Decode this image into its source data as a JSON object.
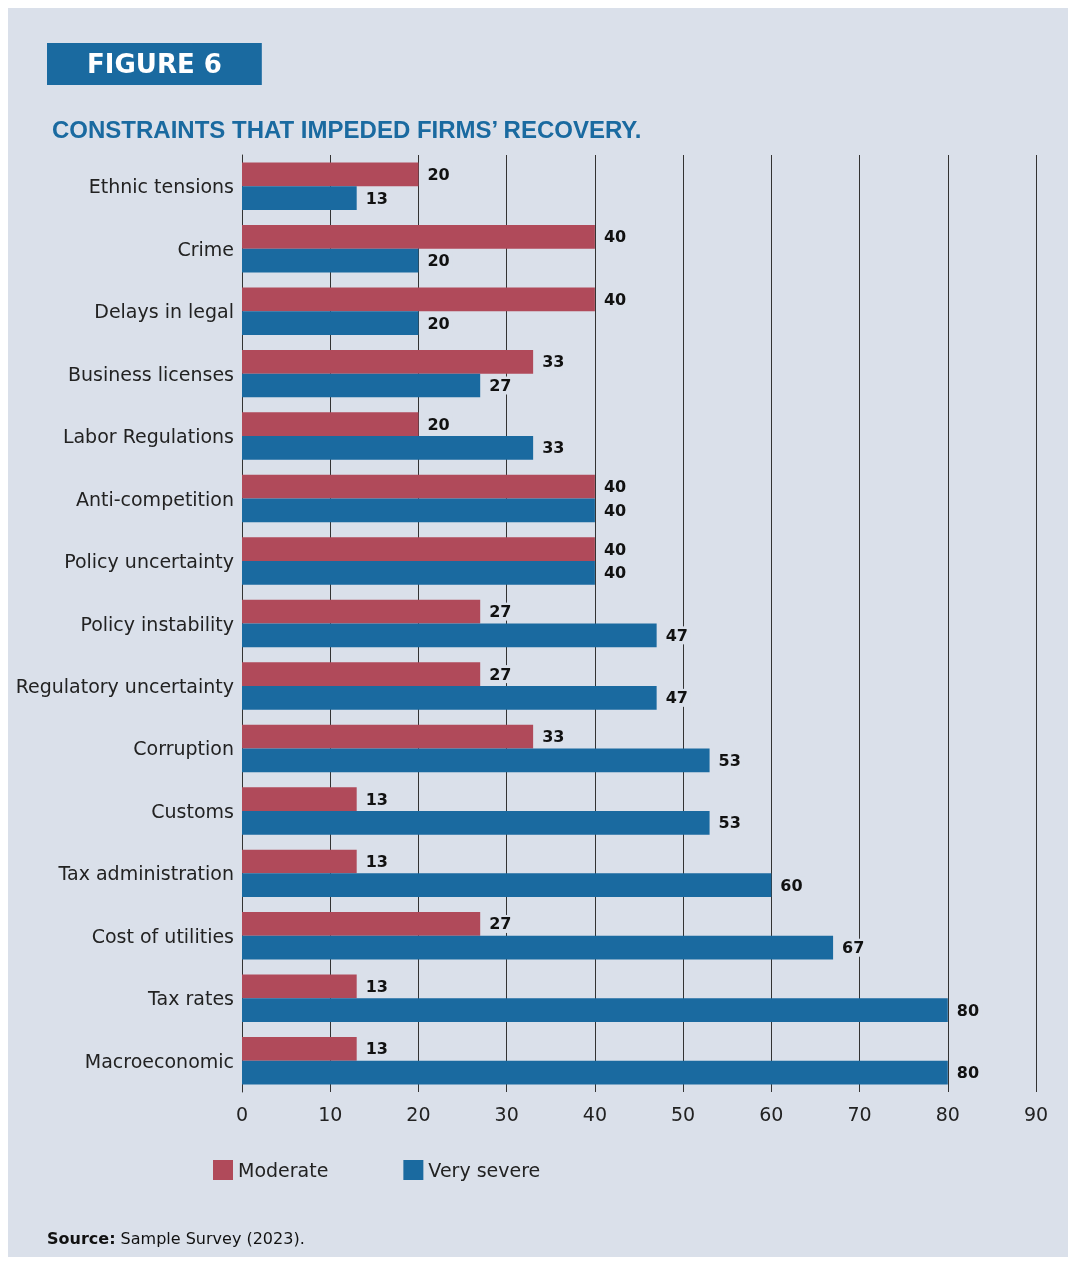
{
  "chart_data": {
    "type": "bar",
    "orientation": "horizontal",
    "title": "FIGURE 6",
    "subtitle": "CONSTRAINTS THAT IMPEDED FIRMS’ RECOVERY.",
    "categories": [
      "Ethnic tensions",
      "Crime",
      "Delays in legal",
      "Business licenses",
      "Labor Regulations",
      "Anti-competition",
      "Policy uncertainty",
      "Policy instability",
      "Regulatory uncertainty",
      "Corruption",
      "Customs",
      "Tax administration",
      "Cost of utilities",
      "Tax rates",
      "Macroeconomic"
    ],
    "series": [
      {
        "name": "Moderate",
        "color": "#b04a5a",
        "values": [
          20,
          40,
          40,
          33,
          20,
          40,
          40,
          27,
          27,
          33,
          13,
          13,
          27,
          13,
          13
        ]
      },
      {
        "name": "Very severe",
        "color": "#1a6aa0",
        "values": [
          13,
          20,
          20,
          27,
          33,
          40,
          40,
          47,
          47,
          53,
          53,
          60,
          67,
          80,
          80
        ]
      }
    ],
    "xlim": [
      0,
      90
    ],
    "xticks": [
      0,
      10,
      20,
      30,
      40,
      50,
      60,
      70,
      80,
      90
    ],
    "grid": "x",
    "legend": "bottom left",
    "data_labels": true,
    "annotations": [
      "Source: Sample Survey (2023)."
    ]
  }
}
